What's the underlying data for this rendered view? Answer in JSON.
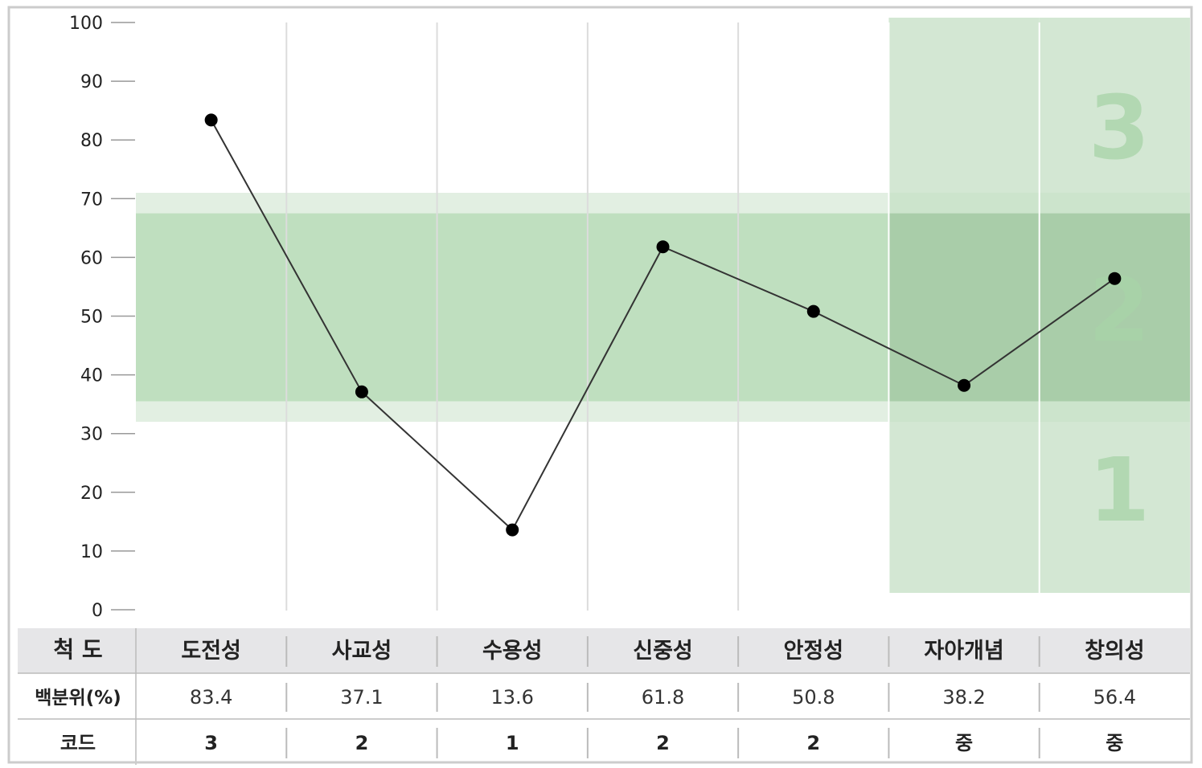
{
  "chart_data": {
    "type": "line",
    "categories": [
      "도전성",
      "사교성",
      "수용성",
      "신중성",
      "안정성",
      "자아개념",
      "창의성"
    ],
    "values": [
      83.4,
      37.1,
      13.6,
      61.8,
      50.8,
      38.2,
      56.4
    ],
    "ylim": [
      0,
      100
    ],
    "yticks": [
      0,
      10,
      20,
      30,
      40,
      50,
      60,
      70,
      80,
      90,
      100
    ],
    "bands": {
      "outer": [
        32,
        71
      ],
      "inner": [
        35.5,
        67.5
      ]
    },
    "highlight_columns": [
      5,
      6
    ],
    "zone_labels": [
      "3",
      "2",
      "1"
    ],
    "colors": {
      "line": "#333333",
      "marker": "#000000",
      "band_outer": "#e2efe2",
      "band_inner": "#bfdfbf",
      "column_highlight": "#d3e7d3",
      "column_band": "#a9cda9"
    }
  },
  "table": {
    "header_label": "척 도",
    "percentile_label": "백분위(%)",
    "code_label": "코드",
    "percentiles": [
      "83.4",
      "37.1",
      "13.6",
      "61.8",
      "50.8",
      "38.2",
      "56.4"
    ],
    "codes": [
      "3",
      "2",
      "1",
      "2",
      "2",
      "중",
      "중"
    ]
  }
}
